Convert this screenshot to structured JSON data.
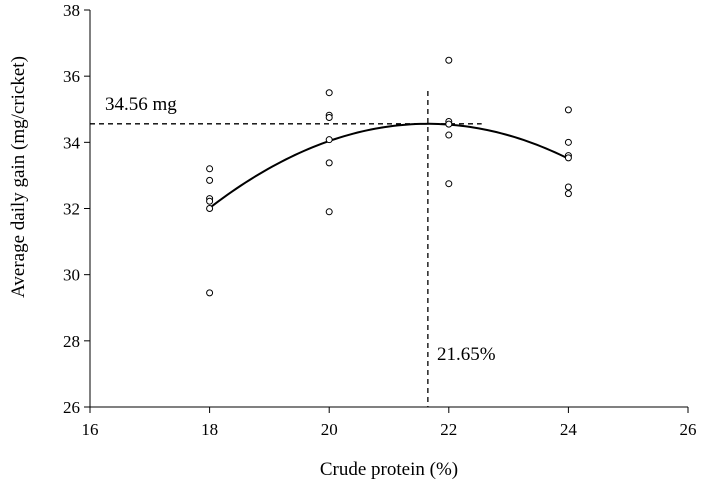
{
  "chart_data": {
    "type": "scatter",
    "xlabel": "Crude protein (%)",
    "ylabel": "Average daily gain (mg/cricket)",
    "xlim": [
      16,
      26
    ],
    "ylim": [
      26,
      38
    ],
    "xticks": [
      16,
      18,
      20,
      22,
      24,
      26
    ],
    "yticks": [
      26,
      28,
      30,
      32,
      34,
      36,
      38
    ],
    "grid": false,
    "series": [
      {
        "marker": "open-circle",
        "points": [
          {
            "x": 18,
            "y": 33.2
          },
          {
            "x": 18,
            "y": 32.85
          },
          {
            "x": 18,
            "y": 32.3
          },
          {
            "x": 18,
            "y": 32.22
          },
          {
            "x": 18,
            "y": 32.0
          },
          {
            "x": 18,
            "y": 29.45
          },
          {
            "x": 20,
            "y": 35.5
          },
          {
            "x": 20,
            "y": 34.82
          },
          {
            "x": 20,
            "y": 34.75
          },
          {
            "x": 20,
            "y": 34.08
          },
          {
            "x": 20,
            "y": 33.38
          },
          {
            "x": 20,
            "y": 31.9
          },
          {
            "x": 22,
            "y": 36.48
          },
          {
            "x": 22,
            "y": 34.63
          },
          {
            "x": 22,
            "y": 34.55
          },
          {
            "x": 22,
            "y": 34.22
          },
          {
            "x": 22,
            "y": 32.75
          },
          {
            "x": 24,
            "y": 34.98
          },
          {
            "x": 24,
            "y": 34.0
          },
          {
            "x": 24,
            "y": 33.6
          },
          {
            "x": 24,
            "y": 33.53
          },
          {
            "x": 24,
            "y": 32.65
          },
          {
            "x": 24,
            "y": 32.45
          }
        ]
      }
    ],
    "fit_curve": {
      "style": "solid",
      "x_range": [
        18,
        24
      ],
      "vertex": {
        "x": 21.65,
        "y": 34.56
      },
      "a": -0.191
    },
    "reference_lines": [
      {
        "orientation": "horizontal",
        "style": "dashed",
        "y": 34.56,
        "x_range": [
          16,
          22.55
        ]
      },
      {
        "orientation": "vertical",
        "style": "dashed",
        "x": 21.65,
        "y_range": [
          26,
          35.55
        ]
      }
    ],
    "annotations": {
      "max_gain_label": "34.56 mg",
      "optimum_protein_label": "21.65%"
    }
  }
}
